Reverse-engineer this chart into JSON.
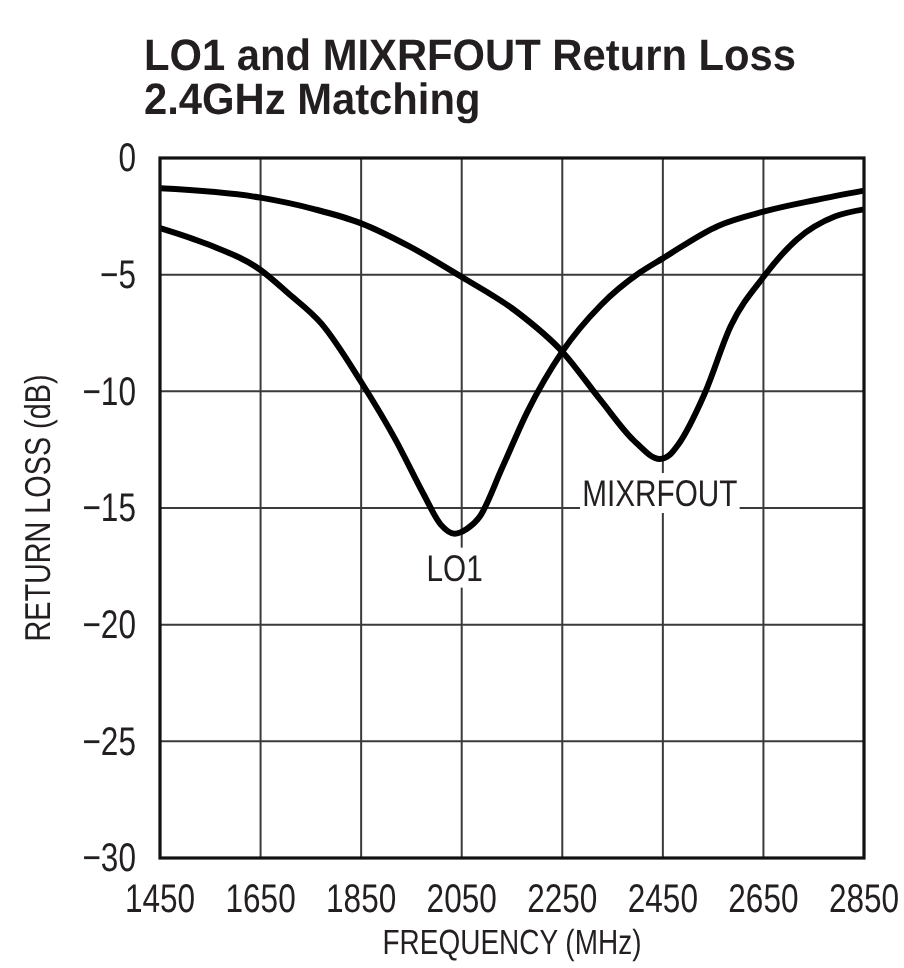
{
  "chart_data": {
    "type": "line",
    "title": "LO1 and MIXRFOUT Return Loss",
    "subtitle": "2.4GHz Matching",
    "xlabel": "FREQUENCY (MHz)",
    "ylabel": "RETURN LOSS (dB)",
    "xlim": [
      1450,
      2850
    ],
    "xticks": [
      1450,
      1650,
      1850,
      2050,
      2250,
      2450,
      2650,
      2850
    ],
    "ylim": [
      -30,
      0
    ],
    "yticks": [
      0,
      {
        "value": -5,
        "label": "−5"
      },
      {
        "value": -10,
        "label": "−10"
      },
      {
        "value": -15,
        "label": "−15"
      },
      {
        "value": -20,
        "label": "−20"
      },
      {
        "value": -25,
        "label": "−25"
      },
      {
        "value": -30,
        "label": "−30"
      }
    ],
    "grid": true,
    "line_style": "solid",
    "series": [
      {
        "name": "LO1",
        "color": "#000000",
        "x": [
          1450,
          1545,
          1650,
          1705,
          1771,
          1850,
          1919,
          1974,
          2008,
          2036,
          2060,
          2085,
          2130,
          2180,
          2250,
          2327,
          2405,
          2450,
          2561,
          2650,
          2754,
          2850
        ],
        "values": [
          -3.0,
          -3.7,
          -4.8,
          -5.8,
          -7.1,
          -9.6,
          -12.1,
          -14.4,
          -15.7,
          -16.1,
          -15.9,
          -15.4,
          -13.3,
          -10.9,
          -8.3,
          -6.3,
          -4.9,
          -4.3,
          -2.9,
          -2.3,
          -1.8,
          -1.4
        ]
      },
      {
        "name": "MIXRFOUT",
        "color": "#000000",
        "x": [
          1450,
          1650,
          1758,
          1850,
          1947,
          2050,
          2160,
          2250,
          2327,
          2392,
          2444,
          2465,
          2480,
          2533,
          2585,
          2650,
          2716,
          2793,
          2850
        ],
        "values": [
          -1.3,
          -1.7,
          -2.2,
          -2.8,
          -3.8,
          -5.1,
          -6.6,
          -8.3,
          -10.4,
          -12.1,
          -12.9,
          -12.7,
          -12.3,
          -10.1,
          -7.2,
          -5.1,
          -3.5,
          -2.5,
          -2.2
        ]
      }
    ]
  }
}
